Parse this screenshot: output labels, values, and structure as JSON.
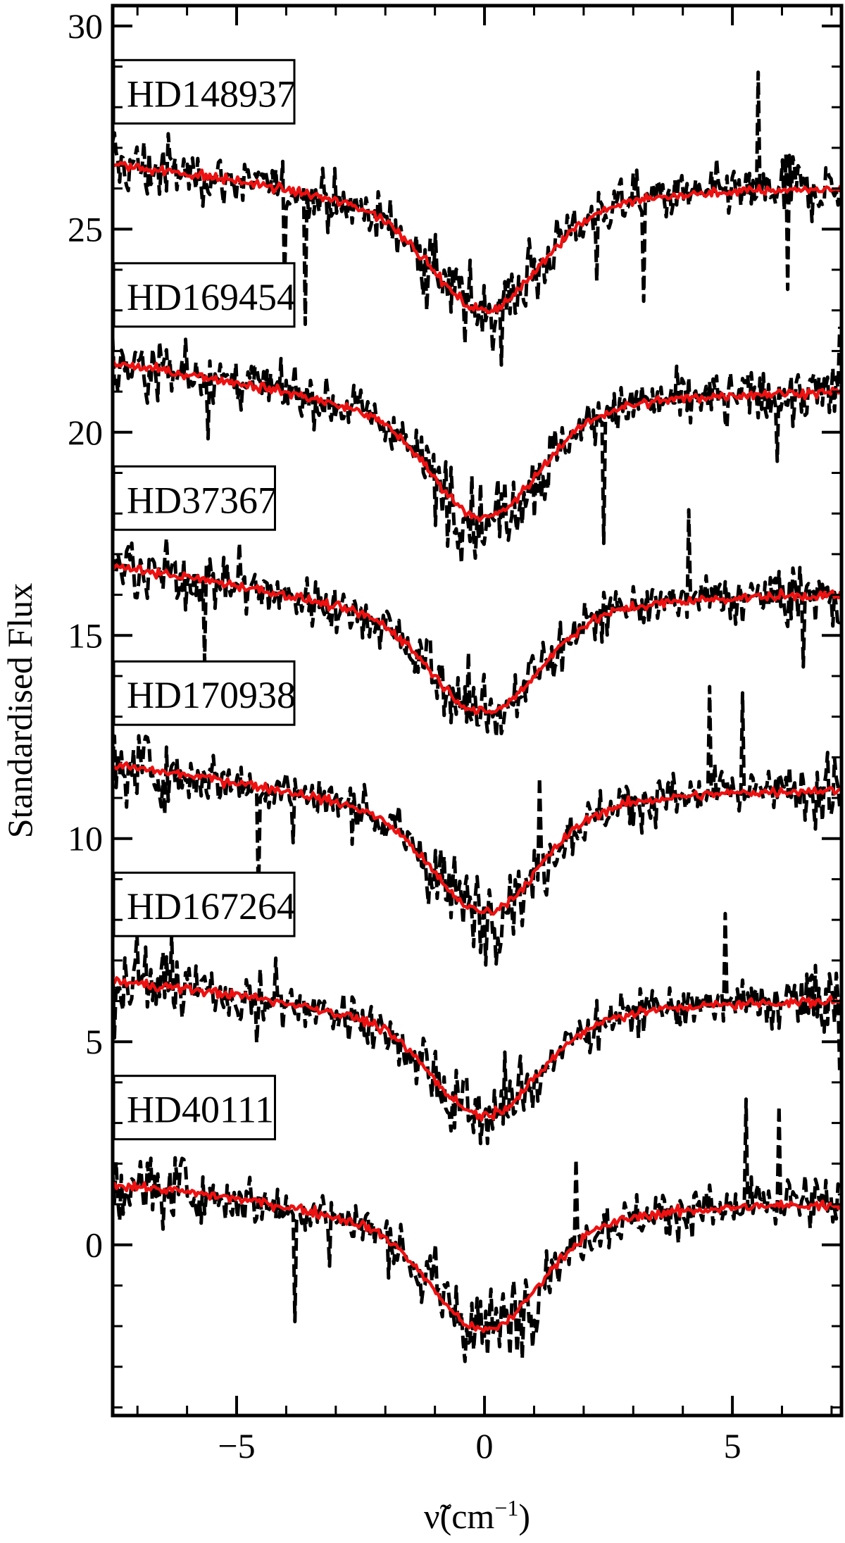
{
  "chart_data": {
    "type": "line",
    "xlabel_symbol": "ν̃",
    "xlabel_unit": "(cm",
    "xlabel_exp": "−1",
    "xlabel_close": ")",
    "ylabel": "Standardised Flux",
    "xlim": [
      -7.5,
      7.2
    ],
    "ylim": [
      -4.2,
      30.5
    ],
    "x_ticks": [
      -5,
      0,
      5
    ],
    "x_tick_labels": [
      "−5",
      "0",
      "5"
    ],
    "y_ticks": [
      0,
      5,
      10,
      15,
      20,
      25,
      30
    ],
    "y_tick_labels": [
      "0",
      "5",
      "10",
      "15",
      "20",
      "25",
      "30"
    ],
    "series_colors": {
      "model": "#ee1111",
      "observed": "#000000"
    },
    "stars": [
      {
        "label": "HD148937",
        "baseline": 26.0,
        "depth": 3.0,
        "left_level": 26.6
      },
      {
        "label": "HD169454",
        "baseline": 21.0,
        "depth": 3.1,
        "left_level": 21.7
      },
      {
        "label": "HD37367",
        "baseline": 16.0,
        "depth": 2.9,
        "left_level": 16.7
      },
      {
        "label": "HD170938",
        "baseline": 11.2,
        "depth": 3.0,
        "left_level": 11.8
      },
      {
        "label": "HD167264",
        "baseline": 6.0,
        "depth": 2.8,
        "left_level": 6.5
      },
      {
        "label": "HD40111",
        "baseline": 1.0,
        "depth": 3.1,
        "left_level": 1.5
      }
    ]
  }
}
